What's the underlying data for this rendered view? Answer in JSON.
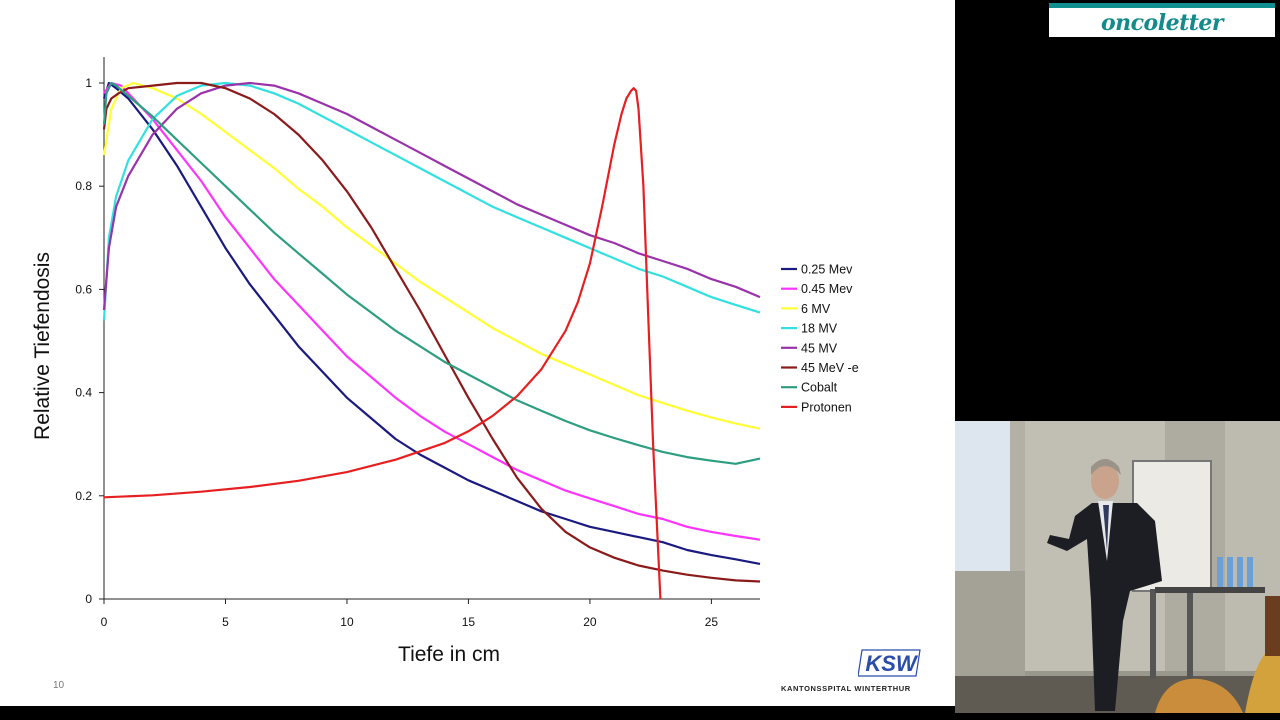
{
  "slide": {
    "number": "10",
    "logo_text": "KSW",
    "hospital_name": "KANTONSSPITAL WINTERTHUR"
  },
  "banner": {
    "text": "oncoletter"
  },
  "chart_data": {
    "type": "line",
    "xlabel": "Tiefe in cm",
    "ylabel": "Relative Tiefendosis",
    "xlim": [
      0,
      27
    ],
    "ylim": [
      0,
      1
    ],
    "x_ticks": [
      0,
      5,
      10,
      15,
      20,
      25
    ],
    "y_ticks": [
      0,
      0.2,
      0.4,
      0.6,
      0.8,
      1
    ],
    "legend_position": "right",
    "grid": false,
    "series": [
      {
        "name": "0.25 Mev",
        "color": "#1a1a80",
        "x": [
          0,
          0.2,
          0.5,
          1,
          2,
          3,
          4,
          5,
          6,
          7,
          8,
          9,
          10,
          11,
          12,
          13,
          14,
          15,
          16,
          17,
          18,
          19,
          20,
          21,
          22,
          23,
          24,
          25,
          26,
          27
        ],
        "y": [
          0.97,
          1.0,
          0.99,
          0.97,
          0.91,
          0.84,
          0.76,
          0.68,
          0.61,
          0.55,
          0.49,
          0.44,
          0.39,
          0.35,
          0.31,
          0.28,
          0.255,
          0.23,
          0.21,
          0.19,
          0.17,
          0.155,
          0.14,
          0.13,
          0.12,
          0.11,
          0.095,
          0.085,
          0.077,
          0.068
        ]
      },
      {
        "name": "0.45 Mev",
        "color": "#ff33ff",
        "x": [
          0,
          0.3,
          0.7,
          1,
          2,
          3,
          4,
          5,
          6,
          7,
          8,
          9,
          10,
          11,
          12,
          13,
          14,
          15,
          16,
          17,
          18,
          19,
          20,
          21,
          22,
          23,
          24,
          25,
          26,
          27
        ],
        "y": [
          0.98,
          1.0,
          0.995,
          0.98,
          0.93,
          0.87,
          0.81,
          0.74,
          0.68,
          0.62,
          0.57,
          0.52,
          0.47,
          0.43,
          0.39,
          0.355,
          0.325,
          0.3,
          0.275,
          0.25,
          0.23,
          0.21,
          0.195,
          0.18,
          0.165,
          0.155,
          0.14,
          0.13,
          0.122,
          0.115
        ]
      },
      {
        "name": "6 MV",
        "color": "#ffff33",
        "x": [
          0,
          0.3,
          0.7,
          1.2,
          2,
          3,
          4,
          5,
          6,
          7,
          8,
          9,
          10,
          11,
          12,
          13,
          14,
          15,
          16,
          17,
          18,
          19,
          20,
          21,
          22,
          23,
          24,
          25,
          26,
          27
        ],
        "y": [
          0.86,
          0.95,
          0.99,
          1.0,
          0.99,
          0.97,
          0.94,
          0.905,
          0.87,
          0.835,
          0.795,
          0.76,
          0.72,
          0.685,
          0.65,
          0.615,
          0.585,
          0.555,
          0.525,
          0.5,
          0.475,
          0.455,
          0.435,
          0.415,
          0.395,
          0.38,
          0.365,
          0.352,
          0.34,
          0.33
        ]
      },
      {
        "name": "18 MV",
        "color": "#33e0e0",
        "x": [
          0,
          0.2,
          0.5,
          1,
          2,
          3,
          4,
          5,
          6,
          7,
          8,
          9,
          10,
          11,
          12,
          13,
          14,
          15,
          16,
          17,
          18,
          19,
          20,
          21,
          22,
          23,
          24,
          25,
          26,
          27
        ],
        "y": [
          0.54,
          0.7,
          0.78,
          0.85,
          0.93,
          0.975,
          0.995,
          1.0,
          0.995,
          0.98,
          0.96,
          0.935,
          0.91,
          0.885,
          0.86,
          0.835,
          0.81,
          0.785,
          0.76,
          0.74,
          0.72,
          0.7,
          0.68,
          0.66,
          0.64,
          0.625,
          0.605,
          0.585,
          0.57,
          0.555
        ]
      },
      {
        "name": "45 MV",
        "color": "#9933aa",
        "x": [
          0,
          0.2,
          0.5,
          1,
          2,
          3,
          4,
          5,
          6,
          7,
          8,
          9,
          10,
          11,
          12,
          13,
          14,
          15,
          16,
          17,
          18,
          19,
          20,
          21,
          22,
          23,
          24,
          25,
          26,
          27
        ],
        "y": [
          0.56,
          0.68,
          0.76,
          0.82,
          0.9,
          0.95,
          0.98,
          0.995,
          1.0,
          0.995,
          0.98,
          0.96,
          0.94,
          0.915,
          0.89,
          0.865,
          0.84,
          0.815,
          0.79,
          0.765,
          0.745,
          0.725,
          0.705,
          0.69,
          0.67,
          0.655,
          0.64,
          0.62,
          0.605,
          0.585
        ]
      },
      {
        "name": "45 MeV -e",
        "color": "#8b1a1a",
        "x": [
          0,
          0.1,
          0.3,
          0.6,
          1,
          2,
          3,
          4,
          5,
          6,
          7,
          8,
          9,
          10,
          11,
          12,
          13,
          14,
          15,
          16,
          17,
          18,
          19,
          20,
          21,
          22,
          23,
          24,
          25,
          26,
          27
        ],
        "y": [
          0.91,
          0.95,
          0.97,
          0.98,
          0.99,
          0.995,
          1.0,
          1.0,
          0.99,
          0.97,
          0.94,
          0.9,
          0.85,
          0.79,
          0.72,
          0.64,
          0.56,
          0.475,
          0.39,
          0.31,
          0.235,
          0.175,
          0.13,
          0.1,
          0.08,
          0.065,
          0.055,
          0.047,
          0.041,
          0.036,
          0.034
        ]
      },
      {
        "name": "Cobalt",
        "color": "#2e9e80",
        "x": [
          0,
          0.1,
          0.3,
          0.5,
          1,
          2,
          3,
          4,
          5,
          6,
          7,
          8,
          9,
          10,
          11,
          12,
          13,
          14,
          15,
          16,
          17,
          18,
          19,
          20,
          21,
          22,
          23,
          24,
          25,
          26,
          27
        ],
        "y": [
          0.92,
          0.98,
          1.0,
          0.995,
          0.975,
          0.935,
          0.89,
          0.845,
          0.8,
          0.755,
          0.71,
          0.67,
          0.63,
          0.59,
          0.555,
          0.52,
          0.49,
          0.46,
          0.435,
          0.41,
          0.385,
          0.365,
          0.345,
          0.327,
          0.312,
          0.298,
          0.285,
          0.275,
          0.268,
          0.262,
          0.272
        ]
      },
      {
        "name": "Protonen",
        "color": "#e62020",
        "x": [
          0,
          2,
          4,
          6,
          8,
          10,
          12,
          14,
          15,
          16,
          17,
          18,
          19,
          19.5,
          20,
          20.5,
          21,
          21.3,
          21.5,
          21.7,
          21.8,
          21.9,
          22.0,
          22.2,
          22.4,
          22.6,
          22.8,
          22.9
        ],
        "y": [
          0.197,
          0.201,
          0.208,
          0.217,
          0.229,
          0.246,
          0.27,
          0.302,
          0.325,
          0.355,
          0.393,
          0.445,
          0.52,
          0.575,
          0.65,
          0.76,
          0.88,
          0.94,
          0.97,
          0.985,
          0.99,
          0.985,
          0.95,
          0.8,
          0.55,
          0.3,
          0.1,
          0.0
        ]
      }
    ]
  }
}
